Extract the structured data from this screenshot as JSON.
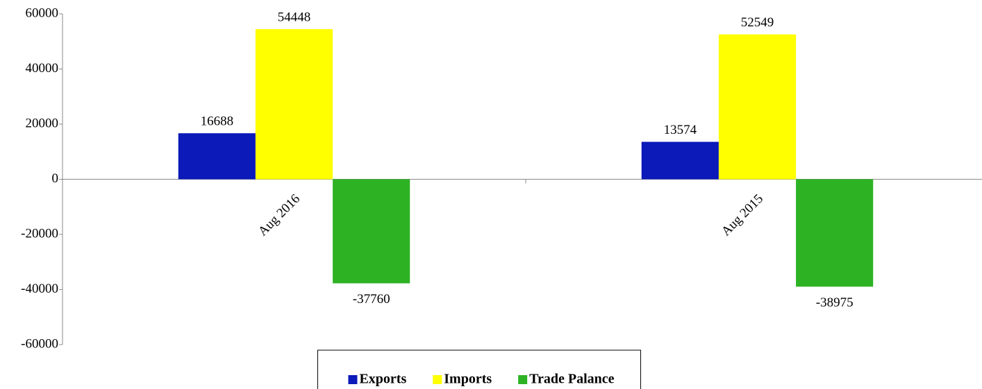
{
  "chart_data": {
    "type": "bar",
    "categories": [
      "Aug 2016",
      "Aug 2015"
    ],
    "series": [
      {
        "name": "Exports",
        "color": "#0b1ab8",
        "values": [
          16688,
          13574
        ]
      },
      {
        "name": "Imports",
        "color": "#ffff00",
        "values": [
          54448,
          52549
        ]
      },
      {
        "name": "Trade Palance",
        "color": "#2db224",
        "values": [
          -37760,
          -38975
        ]
      }
    ],
    "ylim": [
      -60000,
      60000
    ],
    "yticks": [
      -60000,
      -40000,
      -20000,
      0,
      20000,
      40000,
      60000
    ],
    "legend": "bottom",
    "data_labels": true
  }
}
